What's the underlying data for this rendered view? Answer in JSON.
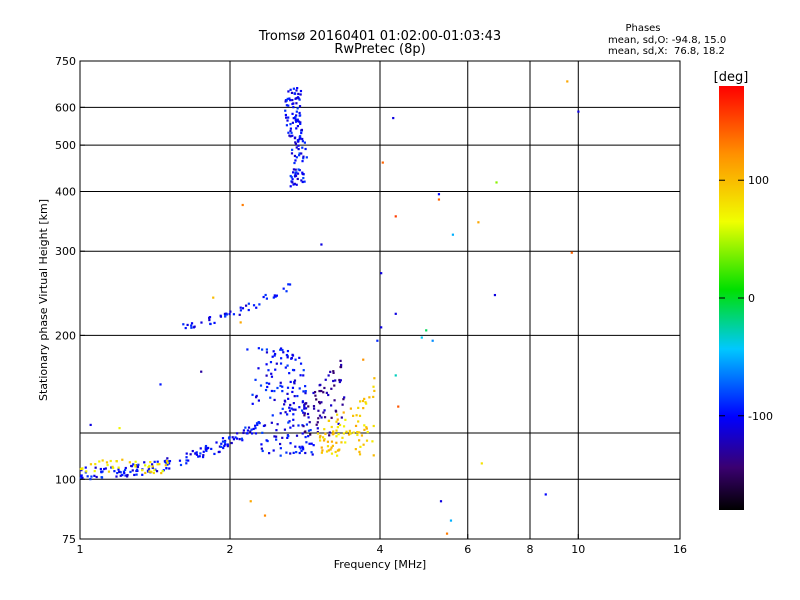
{
  "title": "Tromsø 20160401 01:02:00-01:03:43",
  "subtitle": "RwPretec (8p)",
  "phases": {
    "heading": "Phases",
    "line_o": "mean, sd,O: -94.8, 15.0",
    "line_x": "mean, sd,X:  76.8, 18.2"
  },
  "colorbar": {
    "unit": "[deg]",
    "tick_labels": [
      "100",
      "0",
      "-100"
    ],
    "tick_values": [
      100,
      0,
      -100
    ],
    "range": [
      -180,
      180
    ]
  },
  "chart_data": {
    "type": "scatter",
    "xlabel": "Frequency [MHz]",
    "ylabel": "Stationary phase Virtual Height [km]",
    "xscale": "log",
    "yscale": "log",
    "xlim": [
      1,
      16
    ],
    "ylim": [
      75,
      750
    ],
    "x_ticks": [
      1,
      2,
      4,
      6,
      8,
      10,
      16
    ],
    "x_tick_labels": [
      "1",
      "2",
      "4",
      "6",
      "8",
      "10",
      "16"
    ],
    "x_gridlines": [
      2,
      4,
      6,
      8,
      10
    ],
    "y_ticks": [
      75,
      100,
      200,
      300,
      400,
      500,
      600,
      750
    ],
    "y_tick_labels": [
      "75",
      "100",
      "200",
      "300",
      "400",
      "500",
      "600",
      "750"
    ],
    "y_gridlines": [
      100,
      125,
      200,
      300,
      400,
      500,
      600
    ],
    "grid": true,
    "point_groups": [
      {
        "name": "o-low-trace",
        "phase": -100,
        "x_range": [
          1.0,
          2.3
        ],
        "height_range": [
          103,
          130
        ]
      },
      {
        "name": "x-low-trace",
        "phase": 80,
        "x_range": [
          1.0,
          1.5
        ],
        "height_range": [
          103,
          110
        ]
      },
      {
        "name": "o-main-cusp",
        "phase": -100,
        "x_range": [
          2.3,
          3.0
        ],
        "height_range": [
          112,
          190
        ]
      },
      {
        "name": "purple-upper-branch",
        "phase": -130,
        "x_range": [
          2.8,
          3.4
        ],
        "height_range": [
          120,
          185
        ]
      },
      {
        "name": "x-cusp",
        "phase": 90,
        "x_range": [
          3.0,
          3.9
        ],
        "height_range": [
          112,
          165
        ]
      },
      {
        "name": "f-spread",
        "phase": -100,
        "x_range": [
          2.5,
          2.95
        ],
        "height_range": [
          410,
          660
        ]
      },
      {
        "name": "mid-layer",
        "phase": -100,
        "x_range": [
          1.6,
          2.65
        ],
        "height_range": [
          210,
          255
        ]
      }
    ],
    "scattered_points": [
      {
        "x": 1.05,
        "y": 130,
        "phase": -110
      },
      {
        "x": 1.2,
        "y": 128,
        "phase": 70
      },
      {
        "x": 1.45,
        "y": 158,
        "phase": -95
      },
      {
        "x": 1.75,
        "y": 168,
        "phase": -130
      },
      {
        "x": 2.12,
        "y": 375,
        "phase": 130
      },
      {
        "x": 2.2,
        "y": 90,
        "phase": 110
      },
      {
        "x": 2.35,
        "y": 84,
        "phase": 125
      },
      {
        "x": 2.1,
        "y": 213,
        "phase": 110
      },
      {
        "x": 3.05,
        "y": 310,
        "phase": -110
      },
      {
        "x": 1.85,
        "y": 240,
        "phase": 100
      },
      {
        "x": 3.7,
        "y": 178,
        "phase": 120
      },
      {
        "x": 4.05,
        "y": 460,
        "phase": 140
      },
      {
        "x": 4.02,
        "y": 270,
        "phase": -110
      },
      {
        "x": 4.02,
        "y": 208,
        "phase": -110
      },
      {
        "x": 3.95,
        "y": 195,
        "phase": -90
      },
      {
        "x": 4.3,
        "y": 165,
        "phase": -30
      },
      {
        "x": 4.35,
        "y": 142,
        "phase": 145
      },
      {
        "x": 4.25,
        "y": 570,
        "phase": -110
      },
      {
        "x": 4.3,
        "y": 355,
        "phase": 155
      },
      {
        "x": 4.3,
        "y": 222,
        "phase": -110
      },
      {
        "x": 4.85,
        "y": 198,
        "phase": -40
      },
      {
        "x": 4.95,
        "y": 205,
        "phase": -10
      },
      {
        "x": 5.1,
        "y": 195,
        "phase": -60
      },
      {
        "x": 5.25,
        "y": 395,
        "phase": -100
      },
      {
        "x": 5.25,
        "y": 385,
        "phase": 140
      },
      {
        "x": 5.6,
        "y": 325,
        "phase": -50
      },
      {
        "x": 5.3,
        "y": 90,
        "phase": -110
      },
      {
        "x": 5.55,
        "y": 82,
        "phase": -50
      },
      {
        "x": 5.45,
        "y": 77,
        "phase": 130
      },
      {
        "x": 6.3,
        "y": 345,
        "phase": 110
      },
      {
        "x": 6.4,
        "y": 108,
        "phase": 80
      },
      {
        "x": 6.85,
        "y": 418,
        "phase": 40
      },
      {
        "x": 6.8,
        "y": 243,
        "phase": -110
      },
      {
        "x": 8.6,
        "y": 93,
        "phase": -100
      },
      {
        "x": 9.5,
        "y": 680,
        "phase": 110
      },
      {
        "x": 9.7,
        "y": 298,
        "phase": 140
      },
      {
        "x": 10.0,
        "y": 588,
        "phase": -110
      }
    ]
  }
}
